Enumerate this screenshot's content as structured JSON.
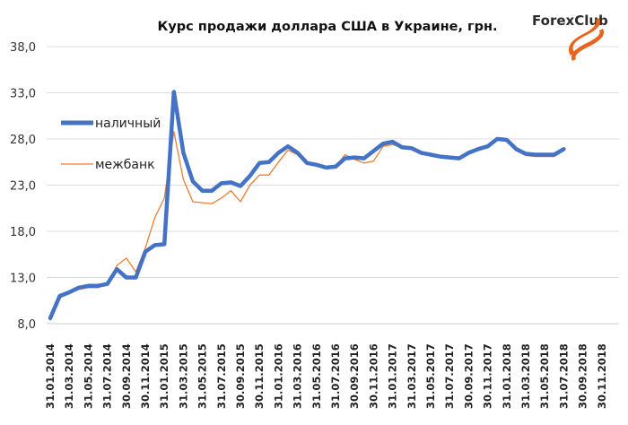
{
  "chart_data": {
    "type": "line",
    "title": "Курс продажи доллара США в Украине, грн.",
    "xlabel": "",
    "ylabel": "",
    "ylim": [
      8,
      38
    ],
    "y_ticks": [
      "8,0",
      "13,0",
      "18,0",
      "23,0",
      "28,0",
      "33,0",
      "38,0"
    ],
    "y_tick_values": [
      8,
      13,
      18,
      23,
      28,
      33,
      38
    ],
    "grid": "horizontal",
    "legend": "upper-left",
    "x_ticks": [
      "31.01.2014",
      "31.03.2014",
      "31.05.2014",
      "31.07.2014",
      "30.09.2014",
      "30.11.2014",
      "31.01.2015",
      "31.03.2015",
      "31.05.2015",
      "31.07.2015",
      "30.09.2015",
      "30.11.2015",
      "31.01.2016",
      "31.03.2016",
      "31.05.2016",
      "31.07.2016",
      "30.09.2016",
      "30.11.2016",
      "31.01.2017",
      "31.03.2017",
      "31.05.2017",
      "31.07.2017",
      "30.09.2017",
      "30.11.2017",
      "31.01.2018",
      "31.03.2018",
      "31.05.2018",
      "31.07.2018",
      "30.09.2018",
      "30.11.2018"
    ],
    "x": [
      "31.01.2014",
      "28.02.2014",
      "31.03.2014",
      "30.04.2014",
      "31.05.2014",
      "30.06.2014",
      "31.07.2014",
      "31.08.2014",
      "30.09.2014",
      "31.10.2014",
      "30.11.2014",
      "31.12.2014",
      "31.01.2015",
      "28.02.2015",
      "31.03.2015",
      "30.04.2015",
      "31.05.2015",
      "30.06.2015",
      "31.07.2015",
      "31.08.2015",
      "30.09.2015",
      "31.10.2015",
      "30.11.2015",
      "31.12.2015",
      "31.01.2016",
      "29.02.2016",
      "31.03.2016",
      "30.04.2016",
      "31.05.2016",
      "30.06.2016",
      "31.07.2016",
      "31.08.2016",
      "30.09.2016",
      "31.10.2016",
      "30.11.2016",
      "31.12.2016",
      "31.01.2017",
      "28.02.2017",
      "31.03.2017",
      "30.04.2017",
      "31.05.2017",
      "30.06.2017",
      "31.07.2017",
      "31.08.2017",
      "30.09.2017",
      "31.10.2017",
      "30.11.2017",
      "31.12.2017",
      "31.01.2018",
      "28.02.2018",
      "31.03.2018",
      "30.04.2018",
      "31.05.2018",
      "30.06.2018",
      "31.07.2018"
    ],
    "series": [
      {
        "name": "наличный",
        "color": "#4472c4",
        "values": [
          8.6,
          11.0,
          11.4,
          11.9,
          12.1,
          12.1,
          12.3,
          13.9,
          13.0,
          13.0,
          15.8,
          16.5,
          16.6,
          33.1,
          26.5,
          23.4,
          22.4,
          22.4,
          23.2,
          23.3,
          22.9,
          24.0,
          25.4,
          25.5,
          26.5,
          27.2,
          26.5,
          25.4,
          25.2,
          24.9,
          25.0,
          25.9,
          26.0,
          25.9,
          26.7,
          27.5,
          27.7,
          27.1,
          27.0,
          26.5,
          26.3,
          26.1,
          26.0,
          25.9,
          26.5,
          26.9,
          27.2,
          28.0,
          27.9,
          26.9,
          26.4,
          26.3,
          26.3,
          26.3,
          26.9
        ]
      },
      {
        "name": "межбанк",
        "color": "#ed7d31",
        "values": [
          8.4,
          10.8,
          11.3,
          11.7,
          11.9,
          11.9,
          12.2,
          14.3,
          15.1,
          13.6,
          16.2,
          19.5,
          21.6,
          28.8,
          23.6,
          21.2,
          21.1,
          21.0,
          21.6,
          22.4,
          21.2,
          23.0,
          24.1,
          24.1,
          25.5,
          26.8,
          26.3,
          25.3,
          25.1,
          24.8,
          25.0,
          26.3,
          25.8,
          25.4,
          25.6,
          27.2,
          27.4,
          27.1,
          27.0,
          26.4,
          26.3,
          26.1,
          25.9,
          25.8,
          26.5,
          26.8,
          27.1,
          27.9,
          27.8,
          26.8,
          26.2,
          26.1,
          26.1,
          26.1,
          26.8
        ]
      }
    ]
  },
  "logo": {
    "text": "ForexClub",
    "color": "#e8641e"
  }
}
